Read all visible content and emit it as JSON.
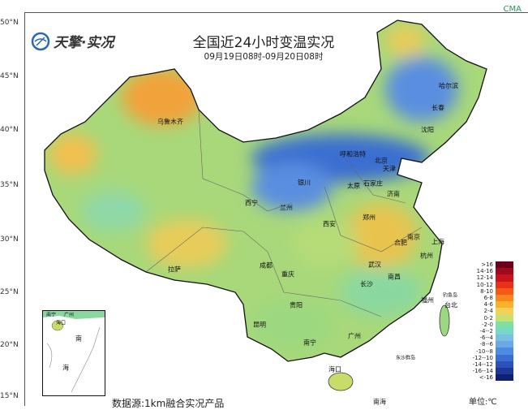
{
  "header": {
    "title": "全国近24小时变温实况",
    "subtitle": "09月19日08时-09月20日08时",
    "logo_text": "天擎·实况",
    "brand": "CMA"
  },
  "latitude_ticks": [
    "50°N",
    "45°N",
    "40°N",
    "35°N",
    "30°N",
    "25°N",
    "20°N",
    "15°N"
  ],
  "cities": [
    "乌鲁木齐",
    "哈尔滨",
    "长春",
    "沈阳",
    "呼和浩特",
    "北京",
    "天津",
    "银川",
    "石家庄",
    "太原",
    "济南",
    "西宁",
    "兰州",
    "郑州",
    "西安",
    "南京",
    "合肥",
    "上海",
    "杭州",
    "成都",
    "武汉",
    "拉萨",
    "重庆",
    "南昌",
    "长沙",
    "福州",
    "钓鱼岛",
    "台北",
    "贵阳",
    "昆明",
    "南宁",
    "广州",
    "东沙群岛",
    "海口",
    "南海"
  ],
  "inset": {
    "labels": [
      "南宁",
      "广州",
      "海口",
      "南",
      "海"
    ]
  },
  "legend": {
    "unit": "单位:℃",
    "items": [
      {
        "label": ">16",
        "color": "#6b0018"
      },
      {
        "label": "14-16",
        "color": "#9c0a1c"
      },
      {
        "label": "12-14",
        "color": "#c8141c"
      },
      {
        "label": "10-12",
        "color": "#e8301a"
      },
      {
        "label": "8-10",
        "color": "#f55a14"
      },
      {
        "label": "6-8",
        "color": "#f7871c"
      },
      {
        "label": "4-6",
        "color": "#f9b02a"
      },
      {
        "label": "2-4",
        "color": "#f3d25a"
      },
      {
        "label": "0-2",
        "color": "#c8e070"
      },
      {
        "label": "-2-0",
        "color": "#7ee0a0"
      },
      {
        "label": "-4--2",
        "color": "#78d8c8"
      },
      {
        "label": "-6--4",
        "color": "#7ac0e0"
      },
      {
        "label": "-8--6",
        "color": "#6aa8e6"
      },
      {
        "label": "-10--8",
        "color": "#4e8ce0"
      },
      {
        "label": "-12--10",
        "color": "#3a6ed0"
      },
      {
        "label": "-14--12",
        "color": "#2a52b8"
      },
      {
        "label": "-16--14",
        "color": "#1c3898"
      },
      {
        "label": "<-16",
        "color": "#0e2070"
      }
    ]
  },
  "source": "数据源:1km融合实况产品"
}
